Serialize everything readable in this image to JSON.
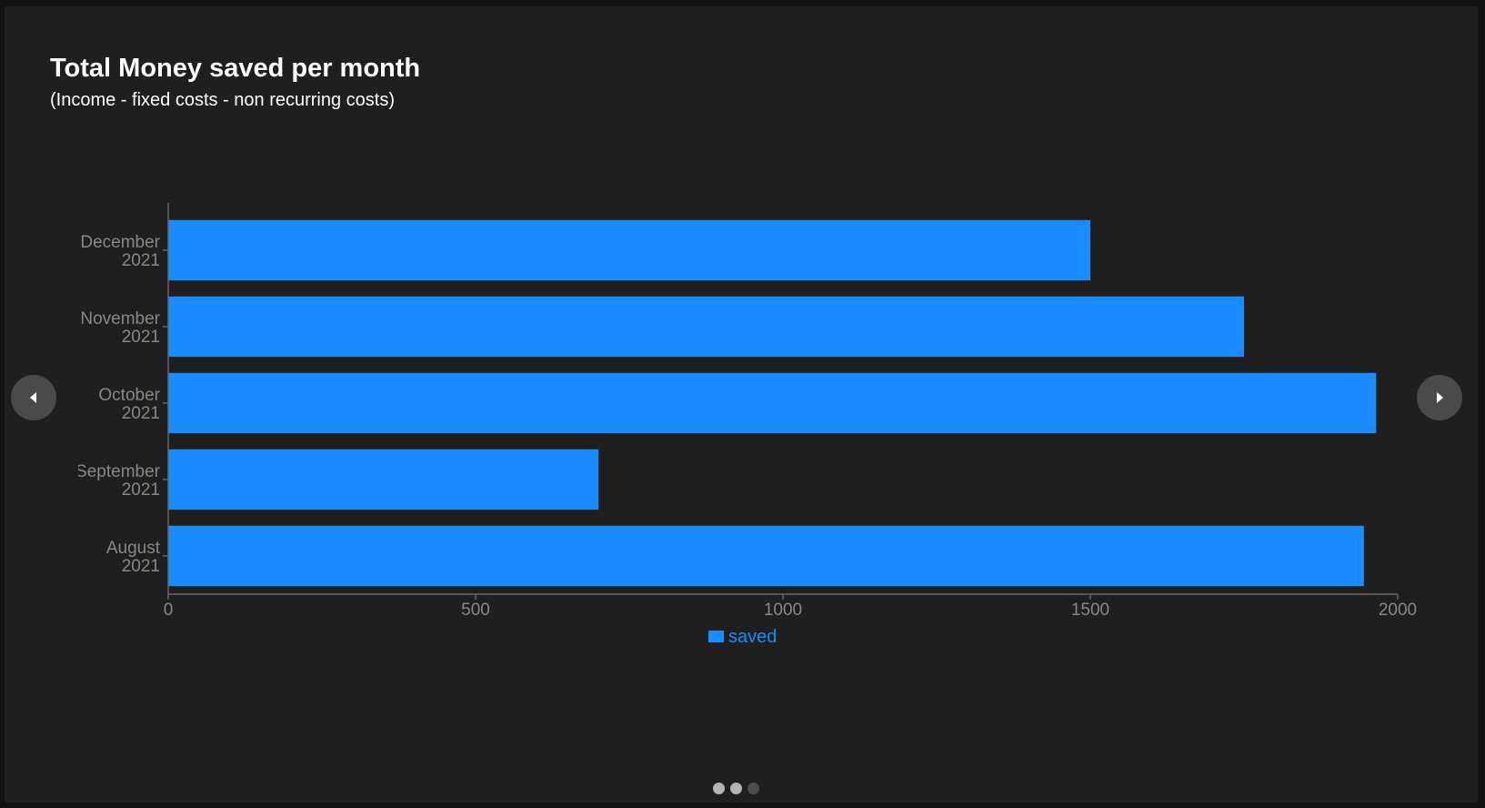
{
  "title": "Total Money saved per month",
  "subtitle": "(Income - fixed costs - non recurring costs)",
  "colors": {
    "bar": "#1a8cff",
    "axis": "#666666",
    "tick_text": "#888888",
    "legend_text": "#1a8cff"
  },
  "nav": {
    "prev_icon": "chevron-left-icon",
    "next_icon": "chevron-right-icon"
  },
  "pager": {
    "dots": [
      {
        "state": "active"
      },
      {
        "state": "active"
      },
      {
        "state": "inactive"
      }
    ]
  },
  "chart_data": {
    "type": "bar",
    "orientation": "horizontal",
    "categories": [
      [
        "December",
        "2021"
      ],
      [
        "November",
        "2021"
      ],
      [
        "October",
        "2021"
      ],
      [
        "September",
        "2021"
      ],
      [
        "August",
        "2021"
      ]
    ],
    "series": [
      {
        "name": "saved",
        "values": [
          1500,
          1750,
          1965,
          700,
          1945
        ]
      }
    ],
    "xlim": [
      0,
      2000
    ],
    "xticks": [
      0,
      500,
      1000,
      1500,
      2000
    ],
    "grid": false,
    "legend_position": "bottom-center"
  }
}
